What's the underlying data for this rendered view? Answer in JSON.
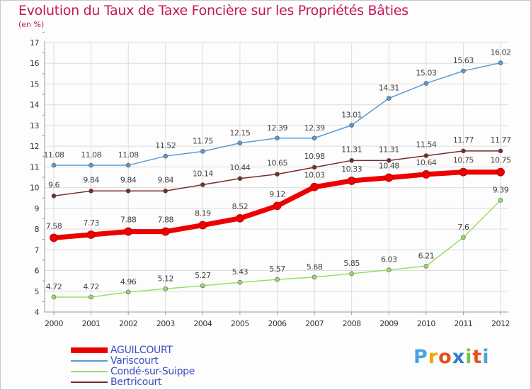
{
  "header": {
    "title": "Evolution du Taux de Taxe Foncière sur les Propriétés Bâties",
    "unit": "(en %)"
  },
  "logo": {
    "text": "Proxiti"
  },
  "chart_data": {
    "type": "line",
    "title": "Evolution du Taux de Taxe Foncière sur les Propriétés Bâties",
    "ylabel": "(en %)",
    "xlabel": "",
    "x": [
      "2000",
      "2001",
      "2002",
      "2003",
      "2004",
      "2005",
      "2006",
      "2007",
      "2008",
      "2009",
      "2010",
      "2011",
      "2012"
    ],
    "ylim": [
      4,
      17
    ],
    "yticks": [
      "4",
      "5",
      "6",
      "7",
      "8",
      "9",
      "10",
      "11",
      "12",
      "13",
      "14",
      "15",
      "16",
      "17"
    ],
    "grid": true,
    "legend_position": "bottom-left",
    "series": [
      {
        "name": "AGUILCOURT",
        "color": "#ee0000",
        "values": [
          7.58,
          7.73,
          7.88,
          7.88,
          8.19,
          8.52,
          9.12,
          10.03,
          10.33,
          10.48,
          10.64,
          10.75,
          10.75
        ],
        "labels": [
          "7.58",
          "7.73",
          "7.88",
          "7.88",
          "8.19",
          "8.52",
          "9.12",
          "10.03",
          "10.33",
          "10.48",
          "10.64",
          "10.75",
          "10.75"
        ]
      },
      {
        "name": "Variscourt",
        "color": "#5b9bd5",
        "values": [
          11.08,
          11.08,
          11.08,
          11.52,
          11.75,
          12.15,
          12.39,
          12.39,
          13.01,
          14.31,
          15.03,
          15.63,
          16.02
        ],
        "labels": [
          "11.08",
          "11.08",
          "11.08",
          "11.52",
          "11.75",
          "12.15",
          "12.39",
          "12.39",
          "13.01",
          "14.31",
          "15.03",
          "15.63",
          "16.02"
        ]
      },
      {
        "name": "Condé-sur-Suippe",
        "color": "#99dd66",
        "values": [
          4.72,
          4.72,
          4.96,
          5.12,
          5.27,
          5.43,
          5.57,
          5.68,
          5.85,
          6.03,
          6.21,
          7.6,
          9.39
        ],
        "labels": [
          "4.72",
          "4.72",
          "4.96",
          "5.12",
          "5.27",
          "5.43",
          "5.57",
          "5.68",
          "5.85",
          "6.03",
          "6.21",
          "7.6",
          "9.39"
        ]
      },
      {
        "name": "Bertricourt",
        "color": "#7a2a2a",
        "values": [
          9.6,
          9.84,
          9.84,
          9.84,
          10.14,
          10.44,
          10.65,
          10.98,
          11.31,
          11.31,
          11.54,
          11.77,
          11.77
        ],
        "labels": [
          "9.6",
          "9.84",
          "9.84",
          "9.84",
          "10.14",
          "10.44",
          "10.65",
          "10.98",
          "11.31",
          "11.31",
          "11.54",
          "11.77",
          "11.77"
        ]
      }
    ]
  }
}
